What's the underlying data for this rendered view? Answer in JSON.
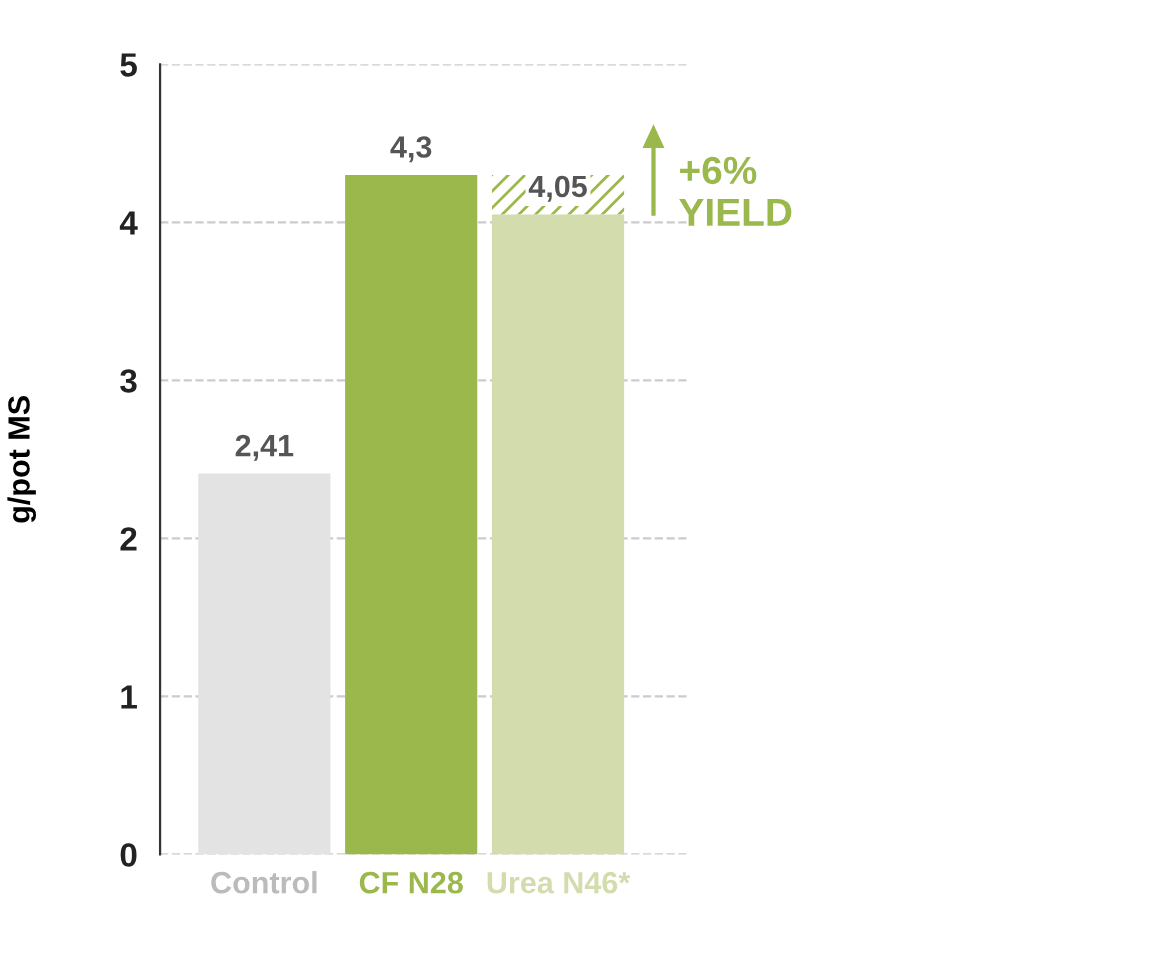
{
  "chart_data": {
    "type": "bar",
    "ylabel": "g/pot MS",
    "categories": [
      "Control",
      "CF N28",
      "Urea N46*"
    ],
    "values": [
      2.41,
      4.3,
      4.05
    ],
    "colors": [
      "#e3e3e3",
      "#9bb84c",
      "#d3dcac"
    ],
    "value_labels": [
      "2,41",
      "4,3",
      "4,05"
    ],
    "ylim": [
      0,
      5
    ],
    "yticks": [
      0,
      1,
      2,
      3,
      4,
      5
    ],
    "grid": "y",
    "annotations": [
      "+6%\nYIELD"
    ]
  }
}
